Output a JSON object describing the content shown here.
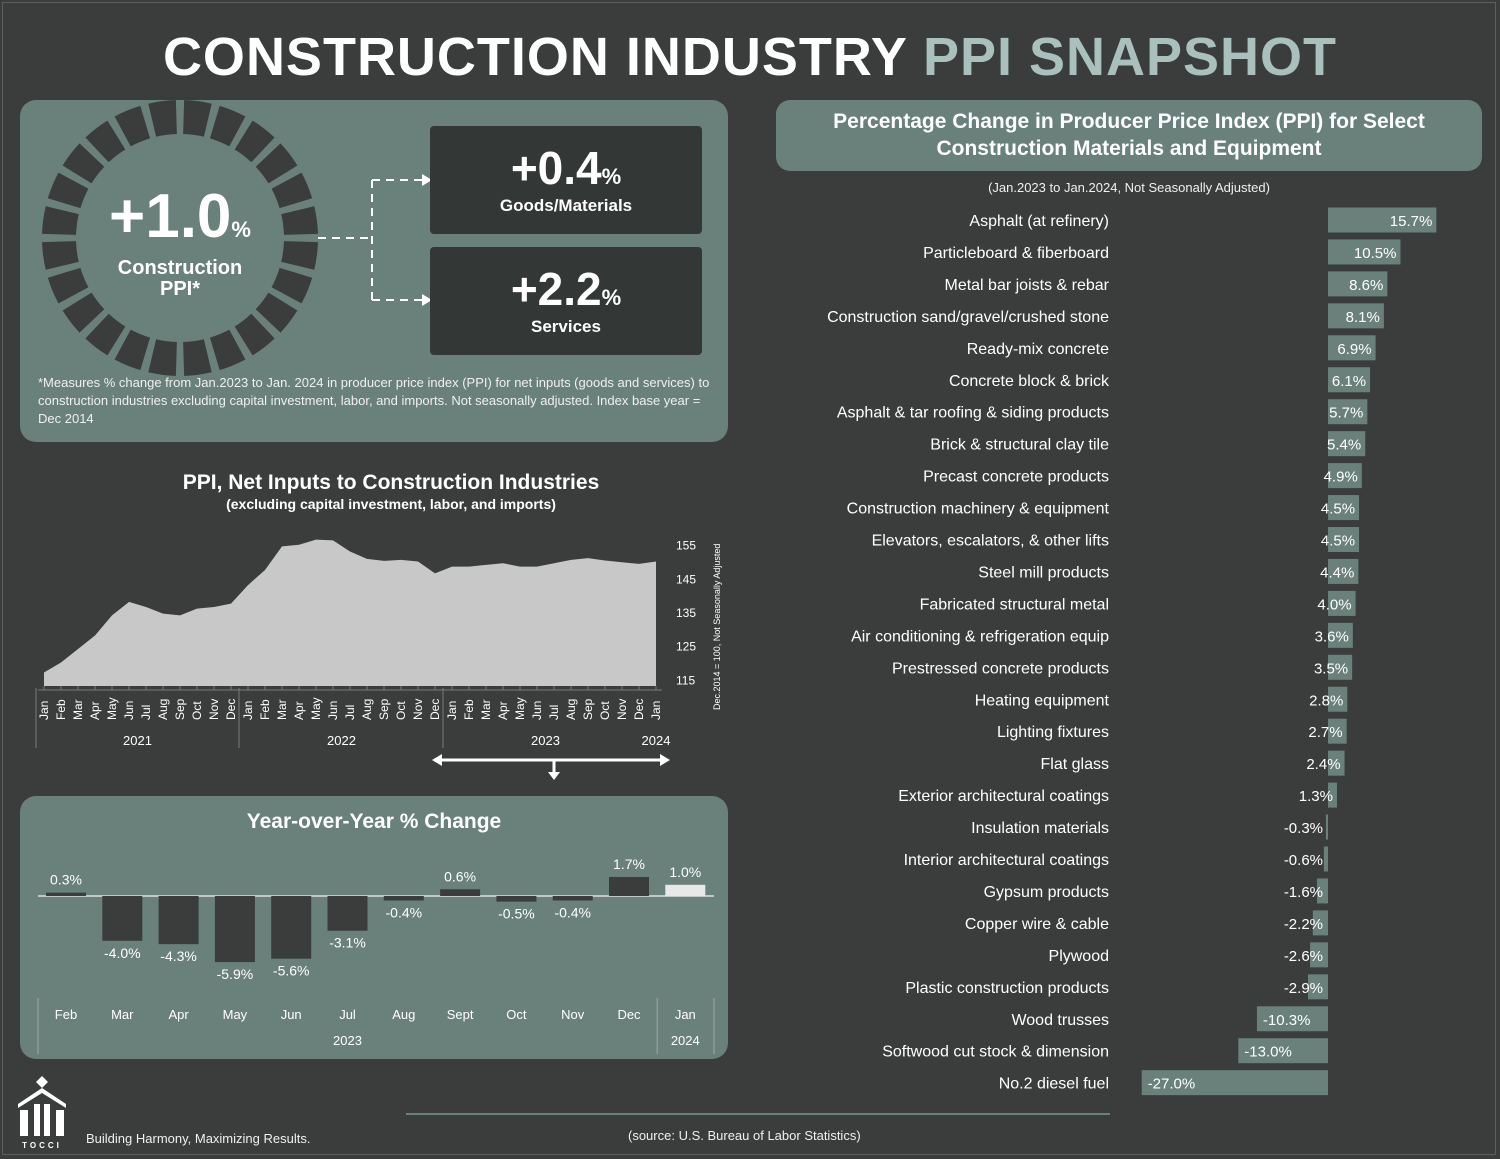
{
  "header": {
    "title_part1": "CONSTRUCTION INDUSTRY",
    "title_part2": "PPI SNAPSHOT"
  },
  "summary": {
    "main_value": "+1.0",
    "main_unit": "%",
    "main_label_line1": "Construction",
    "main_label_line2": "PPI*",
    "goods_value": "+0.4",
    "goods_unit": "%",
    "goods_label": "Goods/Materials",
    "services_value": "+2.2",
    "services_unit": "%",
    "services_label": "Services",
    "footnote": "*Measures % change from Jan.2023 to Jan. 2024 in producer price index (PPI) for net inputs (goods and services) to construction industries excluding capital investment, labor, and imports. Not seasonally adjusted. Index base year = Dec 2014"
  },
  "area_chart": {
    "title": "PPI, Net Inputs to Construction Industries",
    "subtitle": "(excluding capital investment, labor, and imports)",
    "y_axis_label": "Dec.2014 = 100, Not Seasonally Adjusted",
    "year_labels": [
      "2021",
      "2022",
      "2023",
      "2024"
    ]
  },
  "yoy": {
    "title": "Year-over-Year % Change",
    "year_2023": "2023",
    "year_2024": "2024"
  },
  "bars": {
    "title": "Percentage Change in Producer Price Index (PPI) for Select Construction Materials and Equipment",
    "subtitle": "(Jan.2023 to Jan.2024, Not Seasonally Adjusted)"
  },
  "footer": {
    "brand": "TOCCI",
    "tagline": "Building Harmony, Maximizing Results.",
    "source": "(source: U.S. Bureau of Labor Statistics)"
  },
  "colors": {
    "background": "#3a3d3b",
    "panel": "#6a807b",
    "area": "#c8c8c8",
    "accent": "#a9c0bc",
    "bar": "#6a807b",
    "highlight": "#e8e8e8"
  },
  "chart_data": [
    {
      "type": "area",
      "title": "PPI, Net Inputs to Construction Industries",
      "subtitle": "(excluding capital investment, labor, and imports)",
      "ylabel": "Dec.2014 = 100, Not Seasonally Adjusted",
      "ylim": [
        113,
        157
      ],
      "yticks": [
        115,
        125,
        135,
        145,
        155
      ],
      "x": [
        "Jan",
        "Feb",
        "Mar",
        "Apr",
        "May",
        "Jun",
        "Jul",
        "Aug",
        "Sep",
        "Oct",
        "Nov",
        "Dec",
        "Jan",
        "Feb",
        "Mar",
        "Apr",
        "May",
        "Jun",
        "Jul",
        "Aug",
        "Sep",
        "Oct",
        "Nov",
        "Dec",
        "Jan",
        "Feb",
        "Mar",
        "Apr",
        "May",
        "Jun",
        "Jul",
        "Aug",
        "Sep",
        "Oct",
        "Nov",
        "Dec",
        "Jan"
      ],
      "values": [
        117,
        120,
        124,
        128,
        134,
        138,
        136.5,
        134.5,
        134,
        136,
        136.5,
        137.5,
        143,
        147.5,
        154.5,
        155,
        156.5,
        156.3,
        153,
        150.8,
        150.2,
        150.5,
        150,
        146.5,
        148.5,
        148.5,
        149,
        149.5,
        148.5,
        148.5,
        149.5,
        150.5,
        151,
        150.3,
        149.8,
        149.3,
        150
      ],
      "grid": false
    },
    {
      "type": "bar",
      "title": "Year-over-Year % Change",
      "categories": [
        "Feb",
        "Mar",
        "Apr",
        "May",
        "Jun",
        "Jul",
        "Aug",
        "Sept",
        "Oct",
        "Nov",
        "Dec",
        "Jan"
      ],
      "values": [
        0.3,
        -4.0,
        -4.3,
        -5.9,
        -5.6,
        -3.1,
        -0.4,
        0.6,
        -0.5,
        -0.4,
        1.7,
        1.0
      ],
      "labels": [
        "0.3%",
        "-4.0%",
        "-4.3%",
        "-5.9%",
        "-5.6%",
        "-3.1%",
        "-0.4%",
        "0.6%",
        "-0.5%",
        "-0.4%",
        "1.7%",
        "1.0%"
      ],
      "years": [
        "2023",
        "2024"
      ]
    },
    {
      "type": "bar",
      "orientation": "horizontal",
      "title": "Percentage Change in Producer Price Index (PPI) for Select Construction Materials and Equipment",
      "subtitle": "(Jan.2023 to Jan.2024, Not Seasonally Adjusted)",
      "categories": [
        "Asphalt (at refinery)",
        "Particleboard & fiberboard",
        "Metal bar joists & rebar",
        "Construction sand/gravel/crushed stone",
        "Ready-mix concrete",
        "Concrete block & brick",
        "Asphalt & tar roofing & siding products",
        "Brick & structural clay tile",
        "Precast concrete products",
        "Construction machinery & equipment",
        "Elevators, escalators, & other lifts",
        "Steel mill products",
        "Fabricated structural metal",
        "Air conditioning & refrigeration equip",
        "Prestressed concrete products",
        "Heating equipment",
        "Lighting fixtures",
        "Flat glass",
        "Exterior architectural coatings",
        "Insulation materials",
        "Interior architectural coatings",
        "Gypsum products",
        "Copper wire & cable",
        "Plywood",
        "Plastic construction products",
        "Wood trusses",
        "Softwood cut stock & dimension",
        "No.2 diesel fuel"
      ],
      "values": [
        15.7,
        10.5,
        8.6,
        8.1,
        6.9,
        6.1,
        5.7,
        5.4,
        4.9,
        4.5,
        4.5,
        4.4,
        4.0,
        3.6,
        3.5,
        2.8,
        2.7,
        2.4,
        1.3,
        -0.3,
        -0.6,
        -1.6,
        -2.2,
        -2.6,
        -2.9,
        -10.3,
        -13.0,
        -27.0
      ],
      "labels": [
        "15.7%",
        "10.5%",
        "8.6%",
        "8.1%",
        "6.9%",
        "6.1%",
        "5.7%",
        "5.4%",
        "4.9%",
        "4.5%",
        "4.5%",
        "4.4%",
        "4.0%",
        "3.6%",
        "3.5%",
        "2.8%",
        "2.7%",
        "2.4%",
        "1.3%",
        "-0.3%",
        "-0.6%",
        "-1.6%",
        "-2.2%",
        "-2.6%",
        "-2.9%",
        "-10.3%",
        "-13.0%",
        "-27.0%"
      ]
    }
  ]
}
